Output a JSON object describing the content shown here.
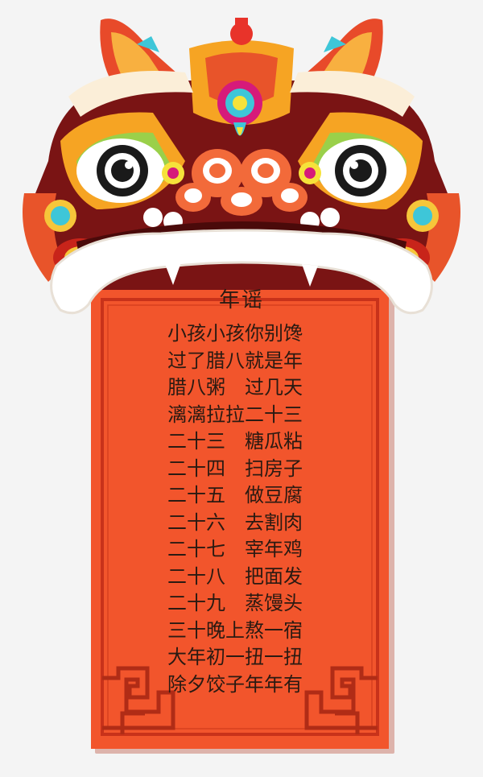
{
  "title": "年谣",
  "lines": [
    "小孩小孩你别馋",
    "过了腊八就是年",
    "腊八粥　过几天",
    "漓漓拉拉二十三",
    "二十三　糖瓜粘",
    "二十四　扫房子",
    "二十五　做豆腐",
    "二十六　去割肉",
    "二十七　宰年鸡",
    "二十八　把面发",
    "二十九　蒸馒头",
    "三十晚上熬一宿",
    "大年初一扭一扭",
    "除夕饺子年年有"
  ],
  "colors": {
    "scroll_red": "#f2552c",
    "frame_dark": "#c8321a",
    "lion_maroon": "#7a1414",
    "lion_gold": "#f6a423",
    "text": "#2a1a12"
  }
}
